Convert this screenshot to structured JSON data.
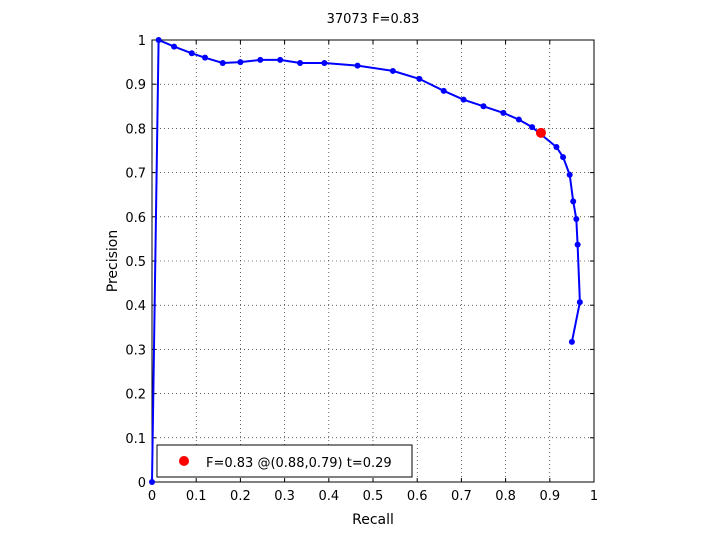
{
  "chart_data": {
    "type": "line",
    "title": "37073 F=0.83",
    "xlabel": "Recall",
    "ylabel": "Precision",
    "xlim": [
      0,
      1
    ],
    "ylim": [
      0,
      1
    ],
    "xticks": [
      "0",
      "0.1",
      "0.2",
      "0.3",
      "0.4",
      "0.5",
      "0.6",
      "0.7",
      "0.8",
      "0.9",
      "1"
    ],
    "yticks": [
      "0",
      "0.1",
      "0.2",
      "0.3",
      "0.4",
      "0.5",
      "0.6",
      "0.7",
      "0.8",
      "0.9",
      "1"
    ],
    "grid": true,
    "legend_position": "bottom-left",
    "line_color": "#0000ff",
    "highlight_color": "#ff0000",
    "series": [
      {
        "x": [
          0.0,
          0.015,
          0.05,
          0.09,
          0.12,
          0.16,
          0.2,
          0.245,
          0.29,
          0.335,
          0.39,
          0.465,
          0.545,
          0.605,
          0.66,
          0.705,
          0.75,
          0.795,
          0.83,
          0.86,
          0.915,
          0.93,
          0.945,
          0.953,
          0.96,
          0.963,
          0.968,
          0.95
        ],
        "y": [
          0.0,
          1.0,
          0.985,
          0.97,
          0.96,
          0.948,
          0.95,
          0.955,
          0.955,
          0.948,
          0.948,
          0.942,
          0.93,
          0.912,
          0.885,
          0.865,
          0.85,
          0.835,
          0.82,
          0.803,
          0.758,
          0.735,
          0.695,
          0.635,
          0.595,
          0.537,
          0.407,
          0.317
        ]
      }
    ],
    "highlight_point": {
      "x": 0.88,
      "y": 0.79
    },
    "legend_text": "F=0.83 @(0.88,0.79) t=0.29"
  }
}
